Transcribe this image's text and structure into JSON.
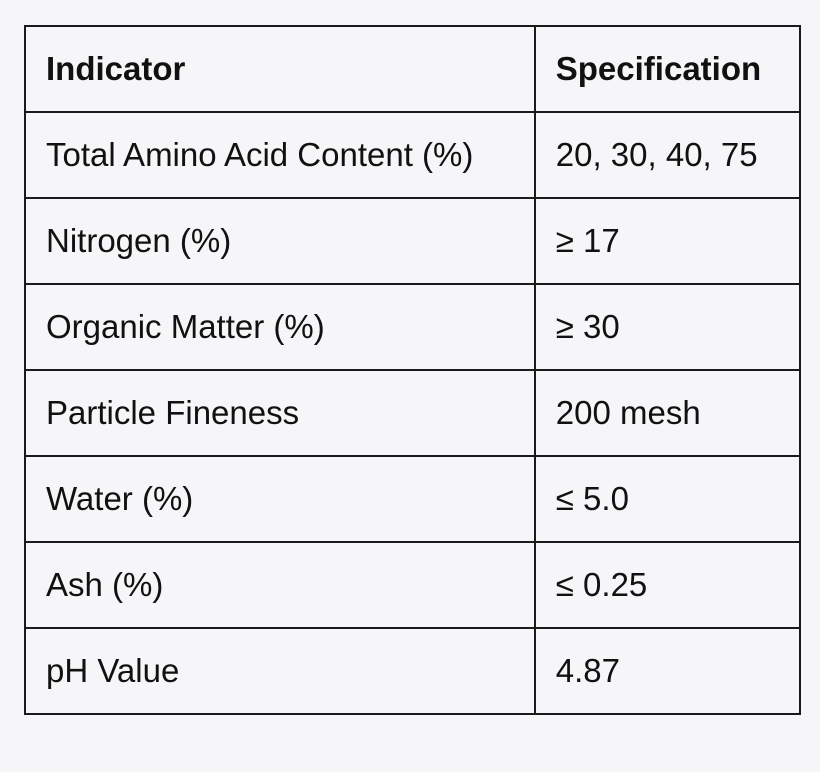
{
  "table": {
    "headers": [
      "Indicator",
      "Specification"
    ],
    "rows": [
      [
        "Total Amino Acid Content (%)",
        "20, 30, 40, 75"
      ],
      [
        "Nitrogen (%)",
        "≥ 17"
      ],
      [
        "Organic Matter (%)",
        "≥ 30"
      ],
      [
        "Particle Fineness",
        "200 mesh"
      ],
      [
        "Water (%)",
        "≤ 5.0"
      ],
      [
        "Ash (%)",
        "≤ 0.25"
      ],
      [
        "pH Value",
        "4.87"
      ]
    ]
  }
}
